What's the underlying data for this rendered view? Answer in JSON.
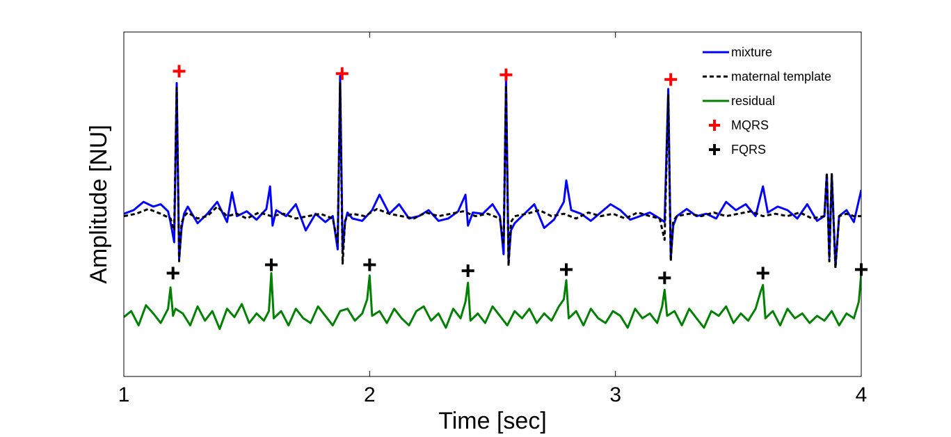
{
  "chart_data": {
    "type": "line",
    "title": "",
    "xlabel": "Time [sec]",
    "ylabel": "Amplitude [NU]",
    "xlim": [
      1,
      4
    ],
    "ylim": [
      -1.35,
      1.55
    ],
    "x_ticks": [
      "1",
      "2",
      "3",
      "4"
    ],
    "y_ticks": [],
    "grid": false,
    "legend_position": "top-right",
    "series": [
      {
        "name": "mixture",
        "color": "#0000ff",
        "style": "solid",
        "width": 3,
        "x": [
          1.0,
          1.04,
          1.08,
          1.12,
          1.15,
          1.18,
          1.19,
          1.205,
          1.215,
          1.225,
          1.235,
          1.245,
          1.26,
          1.3,
          1.34,
          1.38,
          1.42,
          1.44,
          1.46,
          1.5,
          1.54,
          1.58,
          1.595,
          1.605,
          1.62,
          1.66,
          1.7,
          1.74,
          1.78,
          1.82,
          1.85,
          1.87,
          1.88,
          1.89,
          1.9,
          1.91,
          1.93,
          1.97,
          2.01,
          2.04,
          2.08,
          2.12,
          2.16,
          2.2,
          2.24,
          2.28,
          2.32,
          2.36,
          2.39,
          2.4,
          2.42,
          2.46,
          2.5,
          2.53,
          2.545,
          2.555,
          2.565,
          2.575,
          2.59,
          2.63,
          2.67,
          2.71,
          2.75,
          2.79,
          2.8,
          2.82,
          2.86,
          2.9,
          2.94,
          2.98,
          3.02,
          3.06,
          3.1,
          3.14,
          3.18,
          3.2,
          3.215,
          3.225,
          3.235,
          3.25,
          3.29,
          3.33,
          3.37,
          3.41,
          3.45,
          3.49,
          3.53,
          3.57,
          3.6,
          3.62,
          3.66,
          3.7,
          3.74,
          3.78,
          3.82,
          3.85,
          3.86,
          3.87,
          3.88,
          3.895,
          3.91,
          3.94,
          3.97,
          4.0
        ],
        "y": [
          0.02,
          0.05,
          0.12,
          0.08,
          0.1,
          0.04,
          -0.05,
          -0.22,
          1.12,
          -0.36,
          -0.1,
          0.02,
          0.08,
          -0.06,
          0.02,
          0.12,
          -0.05,
          0.2,
          0.0,
          0.04,
          -0.03,
          0.06,
          0.25,
          -0.08,
          0.05,
          0.0,
          0.1,
          -0.12,
          0.02,
          -0.05,
          0.0,
          -0.28,
          1.18,
          -0.3,
          -0.05,
          0.03,
          -0.02,
          -0.04,
          0.05,
          0.18,
          0.02,
          0.1,
          -0.02,
          0.0,
          0.05,
          -0.04,
          -0.02,
          0.04,
          0.18,
          -0.08,
          0.03,
          0.02,
          0.1,
          0.0,
          -0.32,
          1.16,
          -0.38,
          -0.12,
          -0.06,
          0.02,
          0.1,
          -0.1,
          -0.03,
          0.12,
          0.3,
          0.05,
          0.02,
          -0.04,
          0.03,
          0.1,
          0.05,
          -0.03,
          0.0,
          0.03,
          -0.02,
          -0.05,
          1.07,
          -0.35,
          -0.08,
          0.0,
          0.06,
          0.0,
          0.02,
          -0.02,
          0.12,
          0.05,
          0.1,
          0.0,
          0.25,
          0.03,
          0.08,
          0.05,
          -0.02,
          0.1,
          -0.04,
          0.0,
          0.35,
          -0.35,
          0.35,
          -0.42,
          0.0,
          0.05,
          -0.05,
          0.22
        ]
      },
      {
        "name": "maternal template",
        "color": "#000000",
        "style": "dashed",
        "width": 3,
        "x": [
          1.0,
          1.05,
          1.1,
          1.15,
          1.19,
          1.205,
          1.215,
          1.225,
          1.235,
          1.245,
          1.26,
          1.3,
          1.34,
          1.38,
          1.42,
          1.46,
          1.5,
          1.55,
          1.6,
          1.65,
          1.7,
          1.75,
          1.8,
          1.85,
          1.87,
          1.88,
          1.89,
          1.9,
          1.91,
          1.93,
          1.98,
          2.03,
          2.08,
          2.13,
          2.18,
          2.23,
          2.28,
          2.33,
          2.38,
          2.43,
          2.48,
          2.53,
          2.545,
          2.555,
          2.565,
          2.575,
          2.59,
          2.64,
          2.69,
          2.74,
          2.79,
          2.84,
          2.89,
          2.94,
          2.99,
          3.04,
          3.09,
          3.14,
          3.18,
          3.2,
          3.215,
          3.225,
          3.235,
          3.25,
          3.3,
          3.35,
          3.4,
          3.45,
          3.5,
          3.55,
          3.6,
          3.65,
          3.7,
          3.75,
          3.8,
          3.85,
          3.86,
          3.87,
          3.88,
          3.895,
          3.91,
          3.94,
          3.97,
          4.0
        ],
        "y": [
          0.0,
          0.02,
          0.06,
          0.02,
          -0.02,
          -0.12,
          1.08,
          -0.38,
          -0.06,
          0.0,
          0.03,
          -0.02,
          0.0,
          0.08,
          0.0,
          0.02,
          -0.02,
          0.03,
          0.0,
          0.02,
          -0.02,
          0.0,
          0.02,
          -0.02,
          -0.22,
          1.12,
          -0.4,
          -0.04,
          0.0,
          0.02,
          0.0,
          0.06,
          0.02,
          0.0,
          -0.02,
          0.03,
          0.0,
          0.02,
          0.04,
          0.0,
          0.02,
          -0.02,
          -0.24,
          1.1,
          -0.42,
          -0.05,
          0.0,
          0.02,
          0.05,
          0.0,
          0.02,
          -0.02,
          0.03,
          0.0,
          0.02,
          -0.02,
          0.03,
          0.0,
          -0.02,
          -0.2,
          1.02,
          -0.38,
          -0.04,
          0.0,
          0.02,
          0.0,
          0.03,
          0.0,
          0.02,
          0.04,
          0.0,
          0.02,
          0.0,
          0.03,
          -0.02,
          0.0,
          0.36,
          -0.38,
          0.36,
          -0.44,
          0.0,
          0.02,
          0.0,
          0.0
        ]
      },
      {
        "name": "residual",
        "color": "#008000",
        "style": "solid",
        "width": 3,
        "x": [
          1.0,
          1.03,
          1.06,
          1.09,
          1.12,
          1.15,
          1.18,
          1.19,
          1.2,
          1.21,
          1.24,
          1.27,
          1.3,
          1.33,
          1.36,
          1.39,
          1.42,
          1.45,
          1.48,
          1.51,
          1.54,
          1.57,
          1.59,
          1.6,
          1.61,
          1.64,
          1.67,
          1.7,
          1.73,
          1.76,
          1.79,
          1.82,
          1.85,
          1.88,
          1.91,
          1.94,
          1.97,
          1.99,
          2.0,
          2.01,
          2.04,
          2.07,
          2.1,
          2.13,
          2.16,
          2.19,
          2.22,
          2.25,
          2.28,
          2.31,
          2.34,
          2.37,
          2.39,
          2.4,
          2.41,
          2.44,
          2.47,
          2.5,
          2.53,
          2.56,
          2.59,
          2.62,
          2.65,
          2.68,
          2.71,
          2.74,
          2.77,
          2.79,
          2.8,
          2.81,
          2.84,
          2.87,
          2.9,
          2.93,
          2.96,
          2.99,
          3.02,
          3.05,
          3.08,
          3.11,
          3.14,
          3.17,
          3.19,
          3.2,
          3.21,
          3.24,
          3.27,
          3.3,
          3.33,
          3.36,
          3.39,
          3.42,
          3.45,
          3.48,
          3.51,
          3.54,
          3.57,
          3.59,
          3.6,
          3.61,
          3.64,
          3.67,
          3.7,
          3.73,
          3.76,
          3.79,
          3.82,
          3.85,
          3.88,
          3.91,
          3.94,
          3.97,
          3.99,
          4.0
        ],
        "y": [
          -0.85,
          -0.8,
          -0.92,
          -0.75,
          -0.82,
          -0.9,
          -0.78,
          -0.6,
          -0.84,
          -0.78,
          -0.82,
          -0.92,
          -0.76,
          -0.88,
          -0.8,
          -0.95,
          -0.78,
          -0.85,
          -0.74,
          -0.9,
          -0.82,
          -0.88,
          -0.8,
          -0.48,
          -0.86,
          -0.8,
          -0.92,
          -0.78,
          -0.86,
          -0.9,
          -0.76,
          -0.84,
          -0.92,
          -0.8,
          -0.78,
          -0.88,
          -0.82,
          -0.7,
          -0.5,
          -0.84,
          -0.8,
          -0.9,
          -0.78,
          -0.86,
          -0.92,
          -0.8,
          -0.76,
          -0.88,
          -0.82,
          -0.94,
          -0.78,
          -0.86,
          -0.72,
          -0.56,
          -0.88,
          -0.82,
          -0.9,
          -0.76,
          -0.84,
          -0.92,
          -0.8,
          -0.86,
          -0.78,
          -0.9,
          -0.82,
          -0.88,
          -0.76,
          -0.7,
          -0.54,
          -0.86,
          -0.8,
          -0.92,
          -0.78,
          -0.86,
          -0.9,
          -0.8,
          -0.84,
          -0.94,
          -0.78,
          -0.86,
          -0.82,
          -0.9,
          -0.76,
          -0.62,
          -0.84,
          -0.8,
          -0.92,
          -0.78,
          -0.86,
          -0.94,
          -0.8,
          -0.84,
          -0.76,
          -0.9,
          -0.82,
          -0.88,
          -0.78,
          -0.64,
          -0.58,
          -0.86,
          -0.8,
          -0.92,
          -0.78,
          -0.86,
          -0.82,
          -0.9,
          -0.84,
          -0.88,
          -0.8,
          -0.92,
          -0.82,
          -0.86,
          -0.72,
          -0.48
        ]
      },
      {
        "name": "MQRS",
        "color": "#ff0000",
        "marker": "+",
        "x": [
          1.225,
          1.888,
          2.555,
          3.225
        ],
        "y": [
          1.22,
          1.2,
          1.19,
          1.15
        ]
      },
      {
        "name": "FQRS",
        "color": "#000000",
        "marker": "+",
        "x": [
          1.2,
          1.6,
          2.0,
          2.4,
          2.8,
          3.2,
          3.6,
          4.0
        ],
        "y": [
          -0.48,
          -0.41,
          -0.41,
          -0.46,
          -0.45,
          -0.52,
          -0.48,
          -0.45
        ]
      }
    ]
  }
}
